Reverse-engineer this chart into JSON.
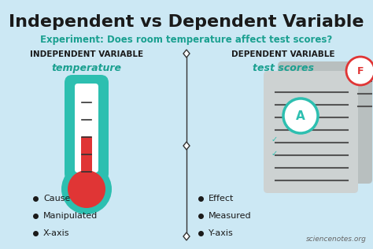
{
  "bg_color": "#cce8f4",
  "title": "Independent vs Dependent Variable",
  "title_fontsize": 16,
  "title_color": "#1a1a1a",
  "subtitle": "Experiment: Does room temperature affect test scores?",
  "subtitle_color": "#1aa090",
  "subtitle_fontsize": 8.5,
  "left_header": "INDEPENDENT VARIABLE",
  "right_header": "DEPENDENT VARIABLE",
  "header_fontsize": 7.5,
  "header_color": "#1a1a1a",
  "left_subheader": "temperature",
  "right_subheader": "test scores",
  "subheader_color": "#1aa090",
  "subheader_fontsize": 9,
  "left_bullets": [
    "Cause",
    "Manipulated",
    "X-axis"
  ],
  "right_bullets": [
    "Effect",
    "Measured",
    "Y-axis"
  ],
  "bullet_fontsize": 8,
  "bullet_color": "#1a1a1a",
  "divider_color": "#333333",
  "watermark": "sciencenotes.org",
  "watermark_color": "#666666",
  "watermark_fontsize": 6.5,
  "thermo_teal": "#2dbfb0",
  "thermo_white": "#ffffff",
  "thermo_red": "#e03535",
  "grade_a_color": "#2dbfb0",
  "grade_f_color": "#e03535",
  "check_color": "#2dbfb0",
  "paper_dark": "#b8bfbf",
  "paper_light": "#cdd2d2",
  "paper_line": "#555555"
}
